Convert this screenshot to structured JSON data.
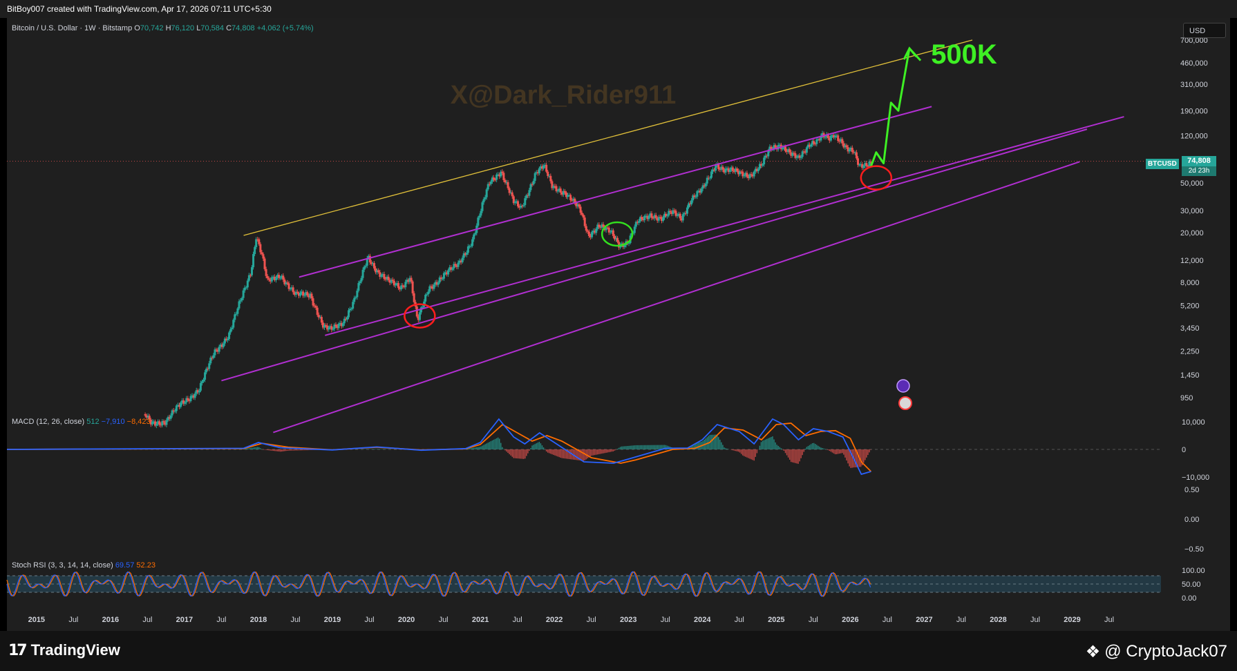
{
  "credit": "BitBoy007 created with TradingView.com, Apr 17, 2026 07:11 UTC+5:30",
  "legend": {
    "title": "Bitcoin / U.S. Dollar · 1W · Bitstamp",
    "o_label": "O",
    "o_value": "70,742",
    "h_label": "H",
    "h_value": "76,120",
    "l_label": "L",
    "l_value": "70,584",
    "c_label": "C",
    "c_value": "74,808",
    "change": "+4,062 (+5.74%)"
  },
  "currency_button": "USD",
  "watermark": "X@Dark_Rider911",
  "target_label": "500K",
  "price_tag": {
    "symbol": "BTCUSD",
    "value": "74,808",
    "countdown": "2d 23h"
  },
  "macd_legend": {
    "name": "MACD (12, 26, close)",
    "hist": "512",
    "macd": "−7,910",
    "signal": "−8,423"
  },
  "stoch_legend": {
    "name": "Stoch RSI (3, 3, 14, 14, close)",
    "k": "69.57",
    "d": "52.23"
  },
  "footer": {
    "brand": "TradingView",
    "author": "@ CryptoJack07"
  },
  "colors": {
    "up": "#26a69a",
    "down": "#ef5350",
    "channel": "#b12fd1",
    "resistance": "#e3c23a",
    "projection": "#3ef024",
    "circle_red": "#ff1d1d",
    "circle_green": "#33e01f",
    "macd_line": "#2962ff",
    "signal_line": "#ff6d00"
  },
  "chart_data": [
    {
      "type": "candlestick",
      "title": "Bitcoin / U.S. Dollar · 1W · Bitstamp",
      "scale": "log",
      "y_ticks": [
        700000,
        460000,
        310000,
        190000,
        120000,
        50000,
        30000,
        20000,
        12000,
        8000,
        5200,
        3450,
        2250,
        1450,
        950
      ],
      "y_tick_labels": [
        "700,000",
        "460,000",
        "310,000",
        "190,000",
        "120,000",
        "50,000",
        "30,000",
        "20,000",
        "12,000",
        "8,000",
        "5,200",
        "3,450",
        "2,250",
        "1,450",
        "950"
      ],
      "x_tick_labels": [
        "2015",
        "Jul",
        "2016",
        "Jul",
        "2017",
        "Jul",
        "2018",
        "Jul",
        "2019",
        "Jul",
        "2020",
        "Jul",
        "2021",
        "Jul",
        "2022",
        "Jul",
        "2023",
        "Jul",
        "2024",
        "Jul",
        "2025",
        "Jul",
        "2026",
        "Jul",
        "2027",
        "Jul",
        "2028",
        "Jul",
        "2029",
        "Jul"
      ],
      "x_ticks": [
        2015.0,
        2015.5,
        2016.0,
        2016.5,
        2017.0,
        2017.5,
        2018.0,
        2018.5,
        2019.0,
        2019.5,
        2020.0,
        2020.5,
        2021.0,
        2021.5,
        2022.0,
        2022.5,
        2023.0,
        2023.5,
        2024.0,
        2024.5,
        2025.0,
        2025.5,
        2026.0,
        2026.5,
        2027.0,
        2027.5,
        2028.0,
        2028.5,
        2029.0,
        2029.5
      ],
      "x_range": [
        2014.6,
        2030.2
      ],
      "last_price": 74808,
      "price_path": [
        [
          2016.45,
          700
        ],
        [
          2016.55,
          600
        ],
        [
          2016.75,
          610
        ],
        [
          2016.95,
          850
        ],
        [
          2017.2,
          1100
        ],
        [
          2017.4,
          2200
        ],
        [
          2017.6,
          3000
        ],
        [
          2017.75,
          5500
        ],
        [
          2017.9,
          10000
        ],
        [
          2017.97,
          19000
        ],
        [
          2018.05,
          13000
        ],
        [
          2018.12,
          8000
        ],
        [
          2018.3,
          9200
        ],
        [
          2018.5,
          6300
        ],
        [
          2018.7,
          6400
        ],
        [
          2018.88,
          3500
        ],
        [
          2018.98,
          3300
        ],
        [
          2019.15,
          3900
        ],
        [
          2019.3,
          5800
        ],
        [
          2019.48,
          12800
        ],
        [
          2019.6,
          10000
        ],
        [
          2019.75,
          8200
        ],
        [
          2019.92,
          7200
        ],
        [
          2020.05,
          9000
        ],
        [
          2020.15,
          3900
        ],
        [
          2020.3,
          7000
        ],
        [
          2020.5,
          9200
        ],
        [
          2020.7,
          11000
        ],
        [
          2020.9,
          18000
        ],
        [
          2021.0,
          29000
        ],
        [
          2021.12,
          50000
        ],
        [
          2021.28,
          63000
        ],
        [
          2021.45,
          35000
        ],
        [
          2021.55,
          31000
        ],
        [
          2021.75,
          61000
        ],
        [
          2021.86,
          68000
        ],
        [
          2021.97,
          47000
        ],
        [
          2022.15,
          42000
        ],
        [
          2022.35,
          30000
        ],
        [
          2022.46,
          19000
        ],
        [
          2022.6,
          23000
        ],
        [
          2022.78,
          19500
        ],
        [
          2022.88,
          16000
        ],
        [
          2023.0,
          17000
        ],
        [
          2023.12,
          24000
        ],
        [
          2023.3,
          28000
        ],
        [
          2023.45,
          26000
        ],
        [
          2023.6,
          29000
        ],
        [
          2023.72,
          26500
        ],
        [
          2023.85,
          37000
        ],
        [
          2024.0,
          44000
        ],
        [
          2024.18,
          71000
        ],
        [
          2024.3,
          63000
        ],
        [
          2024.5,
          61000
        ],
        [
          2024.65,
          58000
        ],
        [
          2024.8,
          68000
        ],
        [
          2024.92,
          96000
        ],
        [
          2025.05,
          102000
        ],
        [
          2025.2,
          84000
        ],
        [
          2025.3,
          78000
        ],
        [
          2025.45,
          105000
        ],
        [
          2025.55,
          108000
        ],
        [
          2025.62,
          118000
        ],
        [
          2025.72,
          112000
        ],
        [
          2025.78,
          123000
        ],
        [
          2025.88,
          110000
        ],
        [
          2025.95,
          95000
        ],
        [
          2026.05,
          87000
        ],
        [
          2026.12,
          67000
        ],
        [
          2026.2,
          70000
        ],
        [
          2026.28,
          74808
        ]
      ],
      "annotations": {
        "resistance_line": [
          [
            2017.8,
            19000
          ],
          [
            2027.65,
            700000
          ]
        ],
        "channel_lines": [
          [
            [
              2018.55,
              8800
            ],
            [
              2027.1,
              205000
            ]
          ],
          [
            [
              2018.9,
              3000
            ],
            [
              2029.7,
              170000
            ]
          ],
          [
            [
              2017.5,
              1300
            ],
            [
              2029.2,
              135000
            ]
          ],
          [
            [
              2018.2,
              500
            ],
            [
              2029.1,
              74000
            ]
          ]
        ],
        "projection_path": [
          [
            2026.28,
            68000
          ],
          [
            2026.35,
            88000
          ],
          [
            2026.45,
            72000
          ],
          [
            2026.55,
            220000
          ],
          [
            2026.65,
            190000
          ],
          [
            2026.8,
            600000
          ],
          [
            2026.95,
            480000
          ]
        ],
        "circles": [
          {
            "color": "red",
            "center": [
              2020.18,
              4300
            ]
          },
          {
            "color": "green",
            "center": [
              2022.85,
              19500
            ]
          },
          {
            "color": "red",
            "center": [
              2026.35,
              55000
            ]
          }
        ]
      }
    },
    {
      "type": "line",
      "title": "MACD (12, 26, close)",
      "y_ticks": [
        10000,
        0,
        -10000
      ],
      "y_tick_labels": [
        "10,000",
        "0",
        "−10,000"
      ],
      "series": [
        {
          "name": "MACD",
          "x": [
            2014.6,
            2017.8,
            2018.0,
            2018.3,
            2019.0,
            2019.6,
            2020.2,
            2020.8,
            2021.0,
            2021.25,
            2021.45,
            2021.6,
            2021.8,
            2022.0,
            2022.4,
            2022.8,
            2023.0,
            2023.5,
            2023.8,
            2024.0,
            2024.2,
            2024.5,
            2024.7,
            2024.95,
            2025.1,
            2025.3,
            2025.5,
            2025.7,
            2025.9,
            2026.05,
            2026.15,
            2026.28
          ],
          "values": [
            0,
            400,
            2500,
            600,
            -200,
            900,
            -300,
            300,
            2500,
            11000,
            4500,
            2000,
            6000,
            2500,
            -4500,
            -5000,
            -3500,
            400,
            500,
            3500,
            9000,
            6500,
            2000,
            11000,
            9000,
            3500,
            7500,
            6500,
            4500,
            -3500,
            -9000,
            -8000
          ]
        },
        {
          "name": "Signal",
          "x": [
            2014.6,
            2017.8,
            2018.05,
            2018.4,
            2019.0,
            2019.6,
            2020.2,
            2020.8,
            2021.0,
            2021.3,
            2021.5,
            2021.7,
            2021.9,
            2022.1,
            2022.5,
            2022.9,
            2023.1,
            2023.6,
            2023.9,
            2024.1,
            2024.3,
            2024.55,
            2024.8,
            2025.0,
            2025.2,
            2025.4,
            2025.6,
            2025.8,
            2026.0,
            2026.15,
            2026.28
          ],
          "values": [
            0,
            300,
            2200,
            800,
            -150,
            800,
            -200,
            200,
            1800,
            9000,
            6000,
            3000,
            5000,
            3000,
            -3000,
            -5000,
            -3800,
            0,
            400,
            2500,
            7800,
            7000,
            3500,
            9000,
            9500,
            5000,
            6500,
            6800,
            4000,
            -4500,
            -8000
          ]
        }
      ]
    },
    {
      "type": "line",
      "title": "Stoch RSI (3, 3, 14, 14, close)",
      "y_ticks": [
        0.5,
        0.0,
        -0.5
      ],
      "y_tick_labels": [
        "0.50",
        "0.00",
        "−0.50"
      ],
      "note": "empty pane"
    },
    {
      "type": "line",
      "title": "Stoch RSI (3, 3, 14, 14, close)",
      "y_ticks": [
        100,
        50,
        0
      ],
      "y_tick_labels": [
        "100.00",
        "50.00",
        "0.00"
      ],
      "bands": [
        80,
        20
      ],
      "series": [
        {
          "name": "K",
          "last": 69.57
        },
        {
          "name": "D",
          "last": 52.23
        }
      ]
    }
  ]
}
